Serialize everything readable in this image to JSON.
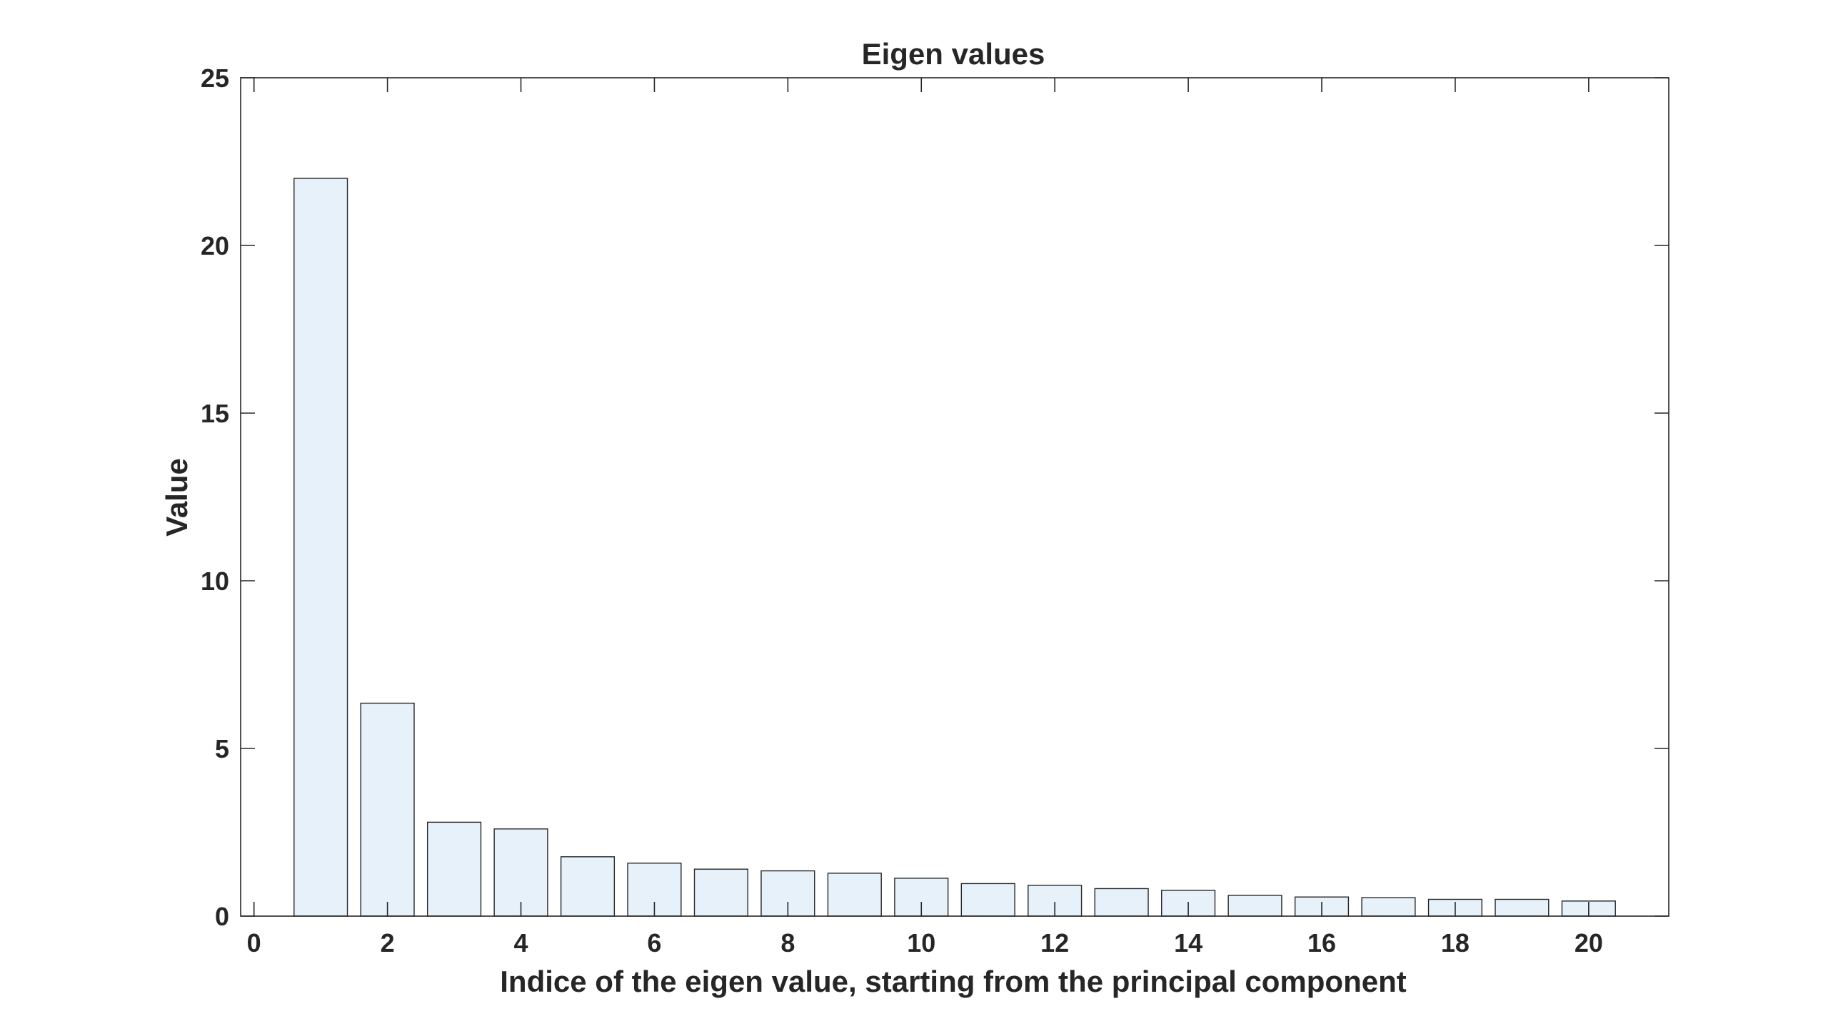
{
  "chart_data": {
    "type": "bar",
    "title": "Eigen values",
    "xlabel": "Indice of the eigen value, starting from the principal component",
    "ylabel": "Value",
    "x": [
      1,
      2,
      3,
      4,
      5,
      6,
      7,
      8,
      9,
      10,
      11,
      12,
      13,
      14,
      15,
      16,
      17,
      18,
      19,
      20
    ],
    "values": [
      22.0,
      6.35,
      2.8,
      2.6,
      1.77,
      1.58,
      1.4,
      1.35,
      1.28,
      1.13,
      0.97,
      0.92,
      0.82,
      0.77,
      0.62,
      0.57,
      0.55,
      0.5,
      0.5,
      0.45
    ],
    "xlim": [
      -0.2,
      21.2
    ],
    "ylim": [
      0,
      25
    ],
    "xticks": [
      "0",
      "2",
      "4",
      "6",
      "8",
      "10",
      "12",
      "14",
      "16",
      "18",
      "20"
    ],
    "yticks": [
      "0",
      "5",
      "10",
      "15",
      "20",
      "25"
    ],
    "grid": false,
    "bar_color": "#e6f1f9",
    "bar_edge_color": "#262626",
    "axis_color": "#262626"
  }
}
